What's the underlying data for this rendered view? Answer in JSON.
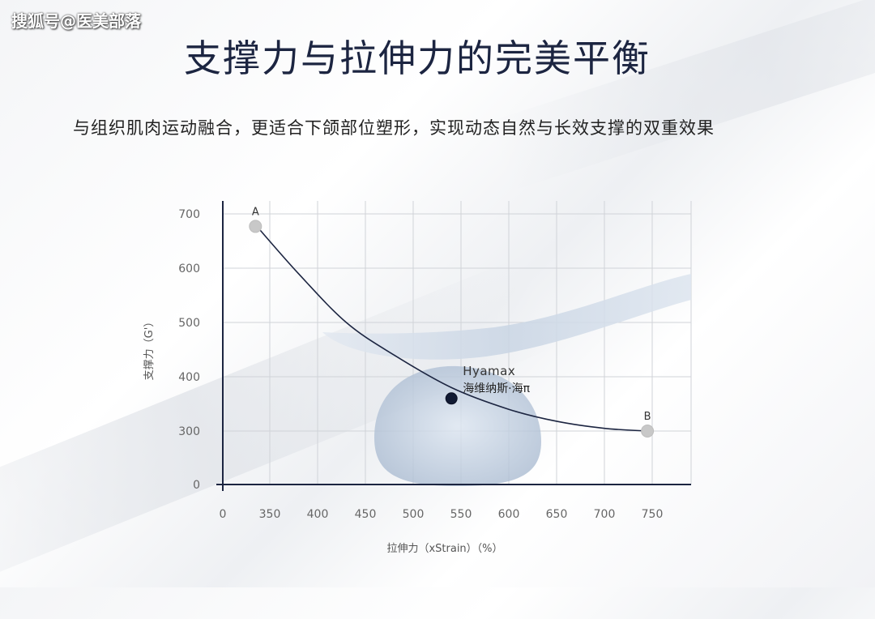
{
  "watermark": "搜狐号@医美部落",
  "header": {
    "title": "支撑力与拉伸力的完美平衡",
    "subtitle": "与组织肌肉运动融合，更适合下颌部位塑形，实现动态自然与长效支撑的双重效果"
  },
  "chart_data": {
    "type": "line",
    "xlabel": "拉伸力（xStrain）（%）",
    "ylabel": "支撑力（G'）",
    "x_ticks": [
      "0",
      "350",
      "400",
      "450",
      "500",
      "550",
      "600",
      "650",
      "700",
      "750"
    ],
    "y_ticks": [
      "0",
      "300",
      "400",
      "500",
      "600",
      "700"
    ],
    "grid": true,
    "series": [
      {
        "values": [
          [
            335,
            680
          ],
          [
            380,
            590
          ],
          [
            430,
            500
          ],
          [
            480,
            440
          ],
          [
            540,
            380
          ],
          [
            600,
            340
          ],
          [
            650,
            318
          ],
          [
            700,
            305
          ],
          [
            745,
            300
          ]
        ]
      }
    ],
    "points": [
      {
        "label": "A",
        "x": 335,
        "y": 677,
        "color": "#c8c8c8"
      },
      {
        "label": "B",
        "x": 745,
        "y": 300,
        "color": "#c8c8c8"
      },
      {
        "label": "海维纳斯·海π",
        "brand": "Hyamax",
        "x": 540,
        "y": 360,
        "color": "#111a33"
      }
    ],
    "colors": {
      "line": "#1c2541",
      "grid": "#d0d3d8",
      "axis": "#1c2541",
      "tick": "#666666"
    }
  }
}
